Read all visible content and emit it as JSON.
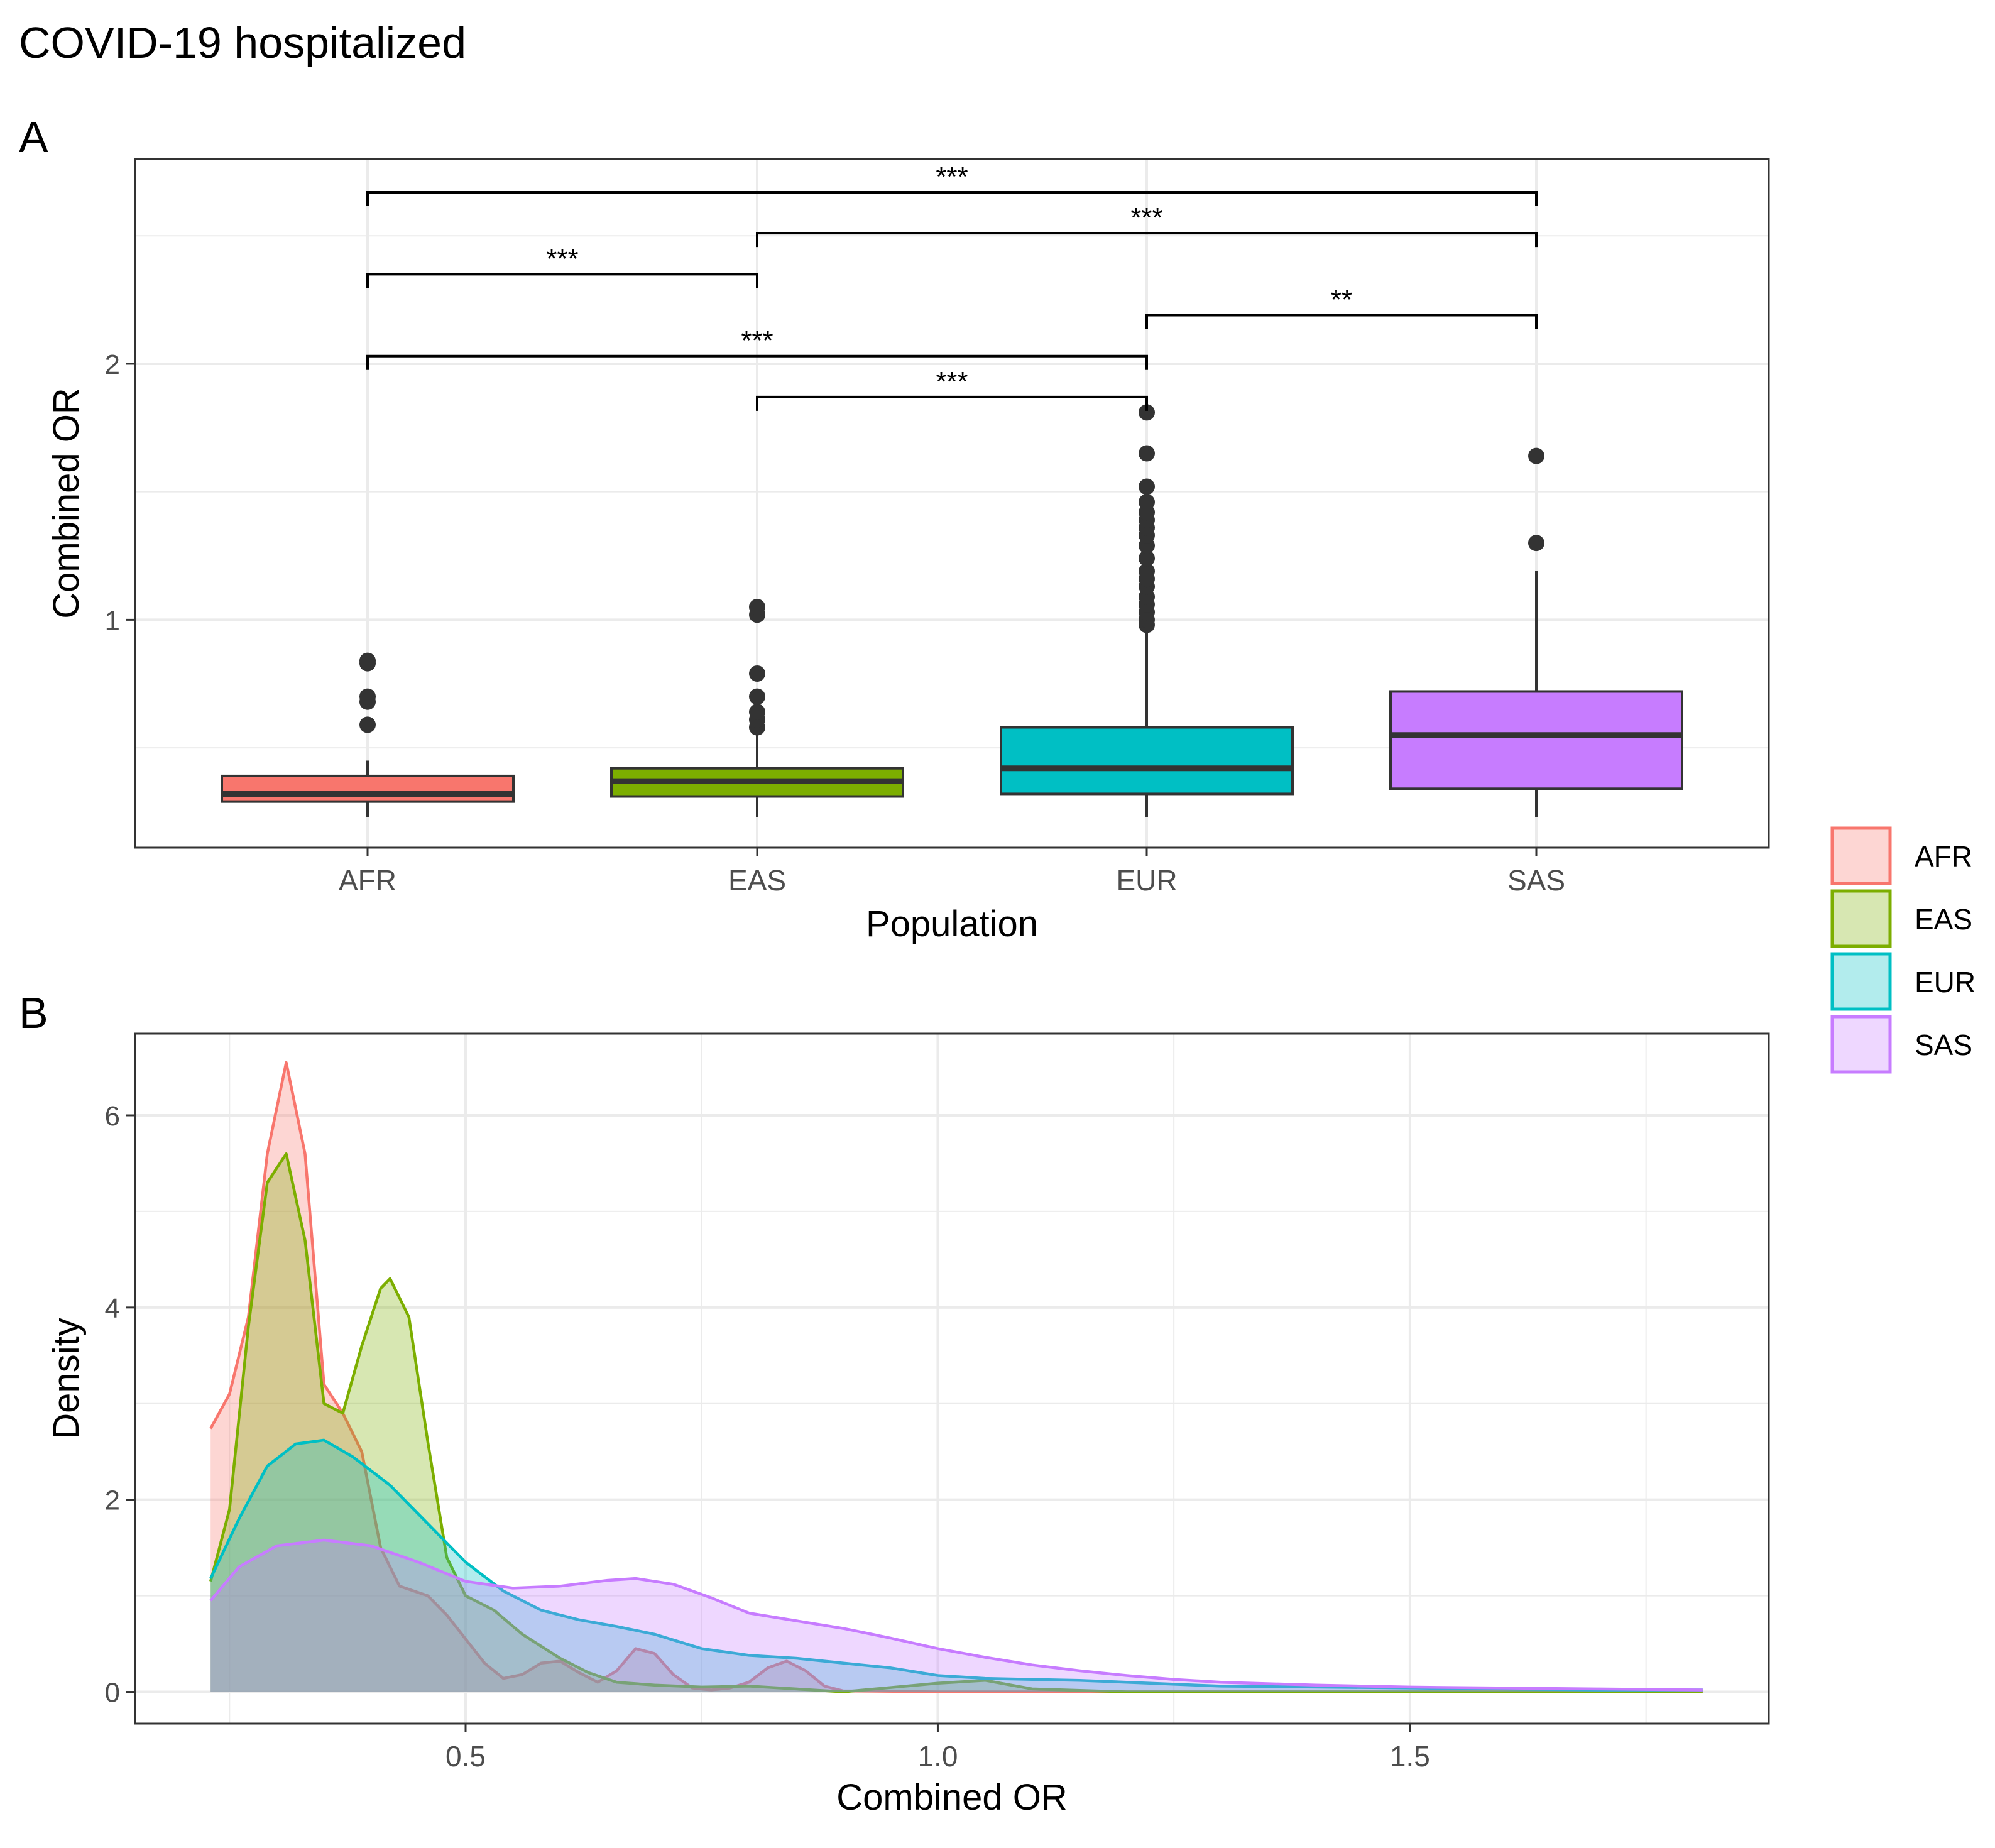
{
  "title": "COVID-19 hospitalized",
  "colors": {
    "AFR": "#F8766D",
    "EAS": "#7CAE00",
    "EUR": "#00BFC4",
    "SAS": "#C77CFF",
    "grid": "#EBEBEB",
    "outlier": "#333333"
  },
  "legend": {
    "position": "right",
    "items": [
      {
        "label": "AFR",
        "color": "#F8766D"
      },
      {
        "label": "EAS",
        "color": "#7CAE00"
      },
      {
        "label": "EUR",
        "color": "#00BFC4"
      },
      {
        "label": "SAS",
        "color": "#C77CFF"
      }
    ]
  },
  "chart_data": [
    {
      "panel": "A",
      "type": "box",
      "xlabel": "Population",
      "ylabel": "Combined OR",
      "ylim": [
        0.11,
        2.8
      ],
      "yticks": [
        1,
        2
      ],
      "ytick_labels": [
        "1",
        "2"
      ],
      "categories": [
        "AFR",
        "EAS",
        "EUR",
        "SAS"
      ],
      "boxes": [
        {
          "name": "AFR",
          "min": 0.23,
          "q1": 0.29,
          "median": 0.32,
          "q3": 0.39,
          "max": 0.45,
          "outliers": [
            0.59,
            0.68,
            0.7,
            0.83,
            0.84
          ]
        },
        {
          "name": "EAS",
          "min": 0.23,
          "q1": 0.31,
          "median": 0.37,
          "q3": 0.42,
          "max": 0.58,
          "outliers": [
            0.58,
            0.61,
            0.64,
            0.7,
            0.79,
            1.02,
            1.05
          ]
        },
        {
          "name": "EUR",
          "min": 0.23,
          "q1": 0.32,
          "median": 0.42,
          "q3": 0.58,
          "max": 0.97,
          "outliers": [
            0.98,
            1.0,
            1.03,
            1.06,
            1.09,
            1.13,
            1.16,
            1.19,
            1.24,
            1.29,
            1.33,
            1.36,
            1.39,
            1.42,
            1.46,
            1.52,
            1.65,
            1.81
          ]
        },
        {
          "name": "SAS",
          "min": 0.23,
          "q1": 0.34,
          "median": 0.55,
          "q3": 0.72,
          "max": 1.19,
          "outliers": [
            1.3,
            1.64
          ]
        }
      ],
      "significance": [
        {
          "from": "AFR",
          "to": "SAS",
          "label": "***",
          "y": 2.67
        },
        {
          "from": "EAS",
          "to": "SAS",
          "label": "***",
          "y": 2.51
        },
        {
          "from": "AFR",
          "to": "EAS",
          "label": "***",
          "y": 2.35
        },
        {
          "from": "EUR",
          "to": "SAS",
          "label": "**",
          "y": 2.19
        },
        {
          "from": "AFR",
          "to": "EUR",
          "label": "***",
          "y": 2.03
        },
        {
          "from": "EAS",
          "to": "EUR",
          "label": "***",
          "y": 1.87
        }
      ],
      "grid": true
    },
    {
      "panel": "B",
      "type": "area",
      "xlabel": "Combined OR",
      "ylabel": "Density",
      "xlim": [
        0.15,
        1.88
      ],
      "ylim": [
        -0.33,
        6.85
      ],
      "xticks": [
        0.5,
        1.0,
        1.5
      ],
      "xtick_labels": [
        "0.5",
        "1.0",
        "1.5"
      ],
      "yticks": [
        0,
        2,
        4,
        6
      ],
      "ytick_labels": [
        "0",
        "2",
        "4",
        "6"
      ],
      "grid": true,
      "series": [
        {
          "name": "AFR",
          "points": [
            [
              0.23,
              2.74
            ],
            [
              0.25,
              3.1
            ],
            [
              0.27,
              3.9
            ],
            [
              0.29,
              5.6
            ],
            [
              0.31,
              6.55
            ],
            [
              0.33,
              5.6
            ],
            [
              0.35,
              3.2
            ],
            [
              0.37,
              2.9
            ],
            [
              0.39,
              2.5
            ],
            [
              0.41,
              1.5
            ],
            [
              0.43,
              1.1
            ],
            [
              0.46,
              1.0
            ],
            [
              0.48,
              0.8
            ],
            [
              0.5,
              0.55
            ],
            [
              0.52,
              0.3
            ],
            [
              0.54,
              0.14
            ],
            [
              0.56,
              0.18
            ],
            [
              0.58,
              0.3
            ],
            [
              0.6,
              0.32
            ],
            [
              0.62,
              0.2
            ],
            [
              0.64,
              0.1
            ],
            [
              0.66,
              0.22
            ],
            [
              0.68,
              0.45
            ],
            [
              0.7,
              0.4
            ],
            [
              0.72,
              0.18
            ],
            [
              0.74,
              0.04
            ],
            [
              0.76,
              0.02
            ],
            [
              0.78,
              0.04
            ],
            [
              0.8,
              0.1
            ],
            [
              0.82,
              0.25
            ],
            [
              0.84,
              0.32
            ],
            [
              0.86,
              0.22
            ],
            [
              0.88,
              0.06
            ],
            [
              0.9,
              0.01
            ],
            [
              1.0,
              0.0
            ],
            [
              1.2,
              0.0
            ],
            [
              1.4,
              0.0
            ],
            [
              1.6,
              0.0
            ],
            [
              1.81,
              0.0
            ]
          ]
        },
        {
          "name": "EAS",
          "points": [
            [
              0.23,
              1.15
            ],
            [
              0.25,
              1.9
            ],
            [
              0.27,
              3.8
            ],
            [
              0.29,
              5.3
            ],
            [
              0.31,
              5.6
            ],
            [
              0.33,
              4.7
            ],
            [
              0.35,
              3.0
            ],
            [
              0.37,
              2.9
            ],
            [
              0.39,
              3.6
            ],
            [
              0.41,
              4.2
            ],
            [
              0.42,
              4.3
            ],
            [
              0.44,
              3.9
            ],
            [
              0.46,
              2.6
            ],
            [
              0.48,
              1.4
            ],
            [
              0.5,
              1.0
            ],
            [
              0.53,
              0.85
            ],
            [
              0.56,
              0.6
            ],
            [
              0.6,
              0.35
            ],
            [
              0.63,
              0.2
            ],
            [
              0.66,
              0.1
            ],
            [
              0.7,
              0.07
            ],
            [
              0.75,
              0.05
            ],
            [
              0.8,
              0.06
            ],
            [
              0.85,
              0.03
            ],
            [
              0.9,
              0.0
            ],
            [
              1.0,
              0.09
            ],
            [
              1.05,
              0.12
            ],
            [
              1.1,
              0.03
            ],
            [
              1.2,
              0.0
            ],
            [
              1.4,
              0.0
            ],
            [
              1.6,
              0.0
            ],
            [
              1.81,
              0.0
            ]
          ]
        },
        {
          "name": "EUR",
          "points": [
            [
              0.23,
              1.18
            ],
            [
              0.26,
              1.8
            ],
            [
              0.29,
              2.35
            ],
            [
              0.32,
              2.58
            ],
            [
              0.35,
              2.62
            ],
            [
              0.38,
              2.45
            ],
            [
              0.42,
              2.15
            ],
            [
              0.46,
              1.75
            ],
            [
              0.5,
              1.35
            ],
            [
              0.54,
              1.05
            ],
            [
              0.58,
              0.85
            ],
            [
              0.62,
              0.75
            ],
            [
              0.66,
              0.68
            ],
            [
              0.7,
              0.6
            ],
            [
              0.75,
              0.45
            ],
            [
              0.8,
              0.38
            ],
            [
              0.85,
              0.35
            ],
            [
              0.9,
              0.3
            ],
            [
              0.95,
              0.25
            ],
            [
              1.0,
              0.17
            ],
            [
              1.05,
              0.14
            ],
            [
              1.1,
              0.13
            ],
            [
              1.15,
              0.12
            ],
            [
              1.2,
              0.1
            ],
            [
              1.3,
              0.06
            ],
            [
              1.4,
              0.05
            ],
            [
              1.5,
              0.04
            ],
            [
              1.6,
              0.03
            ],
            [
              1.7,
              0.02
            ],
            [
              1.81,
              0.02
            ]
          ]
        },
        {
          "name": "SAS",
          "points": [
            [
              0.23,
              0.95
            ],
            [
              0.26,
              1.3
            ],
            [
              0.3,
              1.52
            ],
            [
              0.35,
              1.58
            ],
            [
              0.4,
              1.52
            ],
            [
              0.45,
              1.35
            ],
            [
              0.5,
              1.15
            ],
            [
              0.55,
              1.08
            ],
            [
              0.6,
              1.1
            ],
            [
              0.65,
              1.16
            ],
            [
              0.68,
              1.18
            ],
            [
              0.72,
              1.12
            ],
            [
              0.76,
              0.98
            ],
            [
              0.8,
              0.82
            ],
            [
              0.85,
              0.74
            ],
            [
              0.9,
              0.66
            ],
            [
              0.95,
              0.56
            ],
            [
              1.0,
              0.45
            ],
            [
              1.05,
              0.36
            ],
            [
              1.1,
              0.28
            ],
            [
              1.15,
              0.22
            ],
            [
              1.2,
              0.17
            ],
            [
              1.25,
              0.13
            ],
            [
              1.3,
              0.1
            ],
            [
              1.4,
              0.07
            ],
            [
              1.5,
              0.05
            ],
            [
              1.6,
              0.04
            ],
            [
              1.7,
              0.03
            ],
            [
              1.81,
              0.02
            ]
          ]
        }
      ]
    }
  ]
}
